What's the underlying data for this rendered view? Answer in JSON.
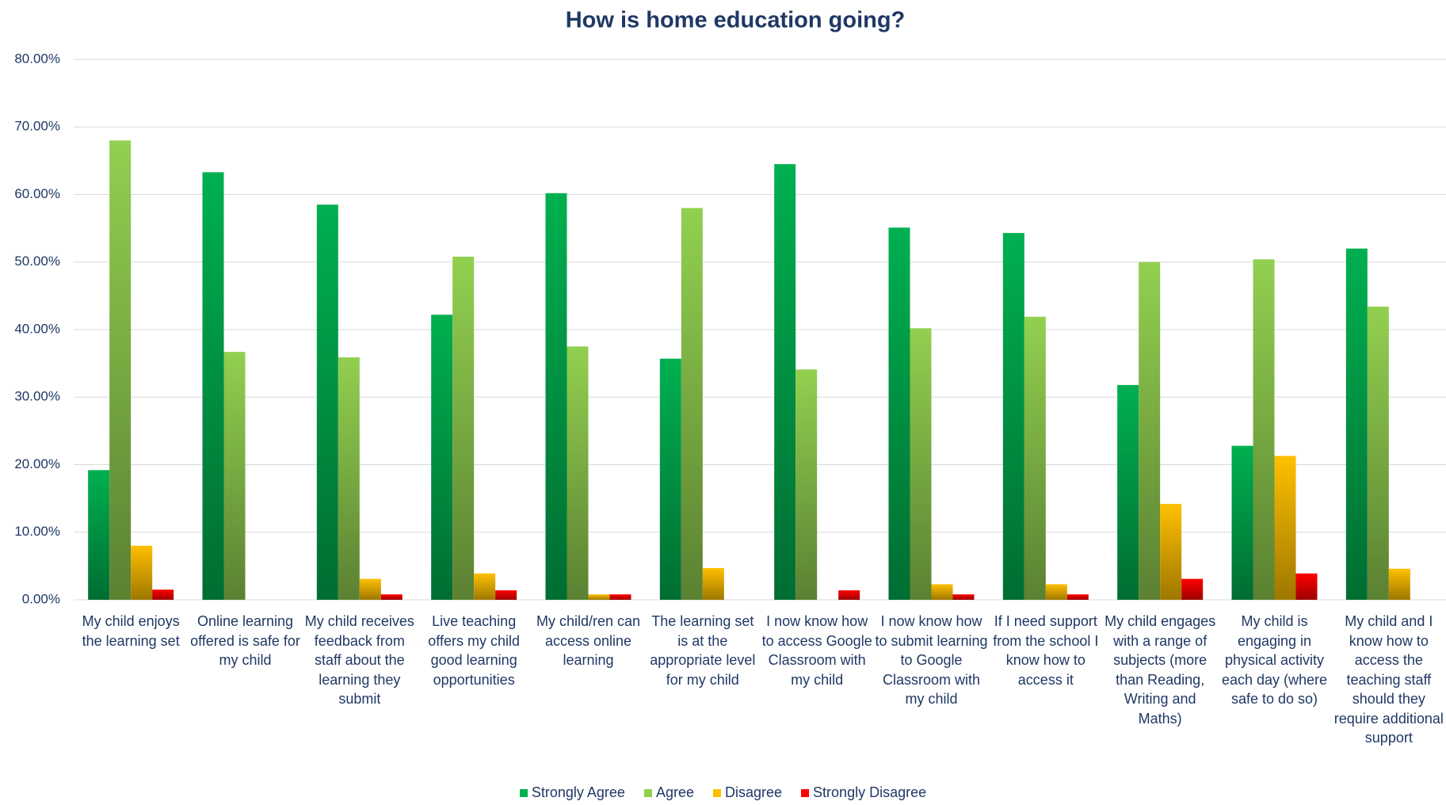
{
  "chart_data": {
    "type": "bar",
    "title": "How is home education going?",
    "categories": [
      "My child enjoys the learning set",
      "Online learning offered is safe for my child",
      "My child receives feedback from staff about the learning they submit",
      "Live teaching offers my child good learning opportunities",
      "My child/ren can access online learning",
      "The learning set is at the appropriate level for my child",
      "I now know how to access Google Classroom with my child",
      "I now know how to submit learning to Google Classroom with my child",
      "If I need support from the school I know how to access it",
      "My child engages with a range of subjects (more than Reading, Writing and Maths)",
      "My child is engaging in physical activity each day (where safe to do so)",
      "My child and I know how to access the teaching staff should they require additional support"
    ],
    "series": [
      {
        "name": "Strongly Agree",
        "color": "#00b050",
        "values": [
          19.2,
          63.3,
          58.5,
          42.2,
          60.2,
          35.7,
          64.5,
          55.1,
          54.3,
          31.8,
          22.8,
          52.0
        ]
      },
      {
        "name": "Agree",
        "color": "#92d050",
        "values": [
          68.0,
          36.7,
          35.9,
          50.8,
          37.5,
          58.0,
          34.1,
          40.2,
          41.9,
          50.0,
          50.4,
          43.4
        ]
      },
      {
        "name": "Disagree",
        "color": "#ffc000",
        "values": [
          8.0,
          0,
          3.1,
          3.9,
          0.8,
          4.7,
          0,
          2.3,
          2.3,
          14.2,
          21.3,
          4.6
        ]
      },
      {
        "name": "Strongly Disagree",
        "color": "#ff0000",
        "values": [
          1.5,
          0,
          0.8,
          1.4,
          0.8,
          0,
          1.4,
          0.8,
          0.8,
          3.1,
          3.9,
          0
        ]
      }
    ],
    "ylim": [
      0,
      80
    ],
    "yticks": [
      {
        "value": 0,
        "label": "0.00%"
      },
      {
        "value": 10,
        "label": "10.00%"
      },
      {
        "value": 20,
        "label": "20.00%"
      },
      {
        "value": 30,
        "label": "30.00%"
      },
      {
        "value": 40,
        "label": "40.00%"
      },
      {
        "value": 50,
        "label": "50.00%"
      },
      {
        "value": 60,
        "label": "60.00%"
      },
      {
        "value": 70,
        "label": "70.00%"
      },
      {
        "value": 80,
        "label": "80.00%"
      }
    ],
    "grid": true
  }
}
